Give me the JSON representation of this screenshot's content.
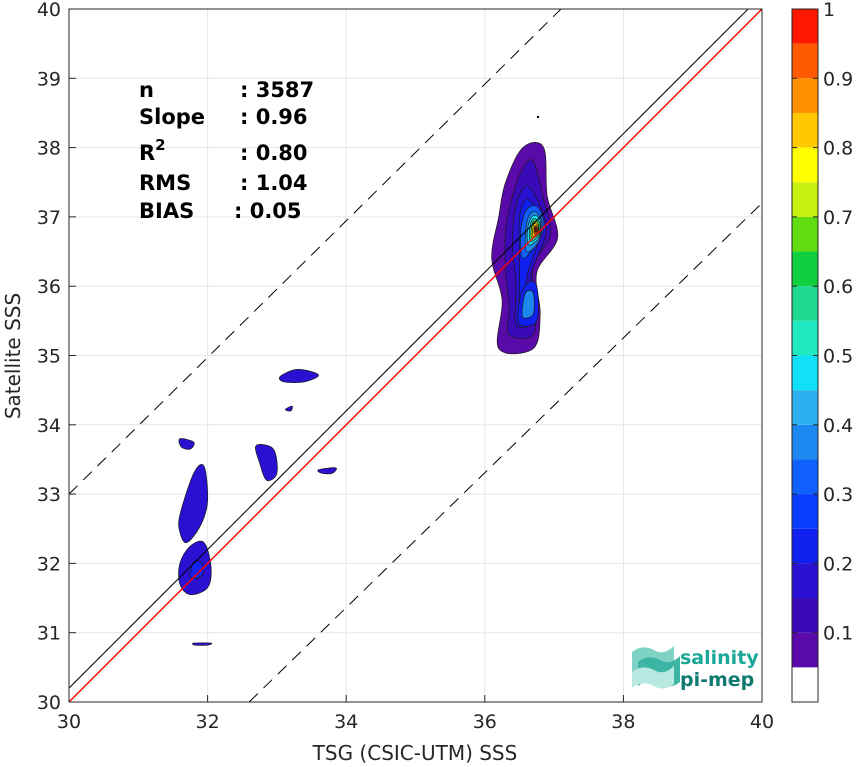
{
  "chart_data": {
    "type": "contour",
    "xlabel": "TSG (CSIC-UTM) SSS",
    "ylabel": "Satellite SSS",
    "xlim": [
      30,
      40
    ],
    "ylim": [
      30,
      40
    ],
    "xticks": [
      30,
      32,
      34,
      36,
      38,
      40
    ],
    "yticks": [
      30,
      31,
      32,
      33,
      34,
      35,
      36,
      37,
      38,
      39,
      40
    ],
    "grid": true,
    "lines": [
      {
        "kind": "identity",
        "color": "#000000",
        "style": "solid",
        "points": [
          [
            30,
            30.2
          ],
          [
            40,
            40.2
          ]
        ]
      },
      {
        "kind": "regression",
        "color": "#ff0000",
        "style": "solid",
        "points": [
          [
            30,
            30.0
          ],
          [
            40,
            40.0
          ]
        ]
      },
      {
        "kind": "upper-bound",
        "color": "#000000",
        "style": "dashed",
        "points": [
          [
            30,
            33.0
          ],
          [
            37.1,
            40.0
          ]
        ]
      },
      {
        "kind": "lower-bound",
        "color": "#000000",
        "style": "dashed",
        "points": [
          [
            32.6,
            30.0
          ],
          [
            40,
            37.2
          ]
        ]
      }
    ],
    "stats": [
      {
        "label": "n",
        "value": ": 3587"
      },
      {
        "label": "Slope",
        "value": ": 0.96"
      },
      {
        "label": "R",
        "sup": "2",
        "value": ": 0.80"
      },
      {
        "label": "RMS",
        "value": ": 1.04"
      },
      {
        "label": "BIAS",
        "value": ": 0.05"
      }
    ],
    "colorbar": {
      "ticks": [
        "0.1",
        "0.2",
        "0.3",
        "0.4",
        "0.5",
        "0.6",
        "0.7",
        "0.8",
        "0.9",
        "1"
      ],
      "tick_values": [
        0.1,
        0.2,
        0.3,
        0.4,
        0.5,
        0.6,
        0.7,
        0.8,
        0.9,
        1.0
      ],
      "range": [
        0,
        1
      ],
      "levels": [
        0,
        0.05,
        0.1,
        0.15,
        0.2,
        0.25,
        0.3,
        0.35,
        0.4,
        0.45,
        0.5,
        0.55,
        0.6,
        0.65,
        0.7,
        0.75,
        0.8,
        0.85,
        0.9,
        0.95,
        1.0
      ],
      "colors": [
        "#ffffff",
        "#5a0aa8",
        "#3a0ab8",
        "#2a10d0",
        "#1020ee",
        "#0a3cff",
        "#1060ff",
        "#1c88f0",
        "#2cb0f0",
        "#10e0f8",
        "#20e8c0",
        "#20d890",
        "#10d040",
        "#60dc10",
        "#c8f010",
        "#ffff00",
        "#ffc800",
        "#ff9000",
        "#ff5a00",
        "#ff1800",
        "#8c0000"
      ]
    },
    "contours": [
      {
        "name": "main-cluster-outer",
        "level": 0.05,
        "color": "#5a0aa8",
        "points": [
          [
            36.2,
            35.1
          ],
          [
            36.7,
            35.1
          ],
          [
            36.8,
            35.6
          ],
          [
            36.75,
            36.2
          ],
          [
            37.05,
            36.7
          ],
          [
            36.9,
            37.3
          ],
          [
            36.85,
            38.0
          ],
          [
            36.55,
            38.0
          ],
          [
            36.3,
            37.5
          ],
          [
            36.2,
            37.0
          ],
          [
            36.1,
            36.4
          ],
          [
            36.25,
            35.8
          ]
        ]
      },
      {
        "name": "main-cluster-l1",
        "level": 0.1,
        "color": "#3a0ab8",
        "points": [
          [
            36.35,
            35.3
          ],
          [
            36.7,
            35.3
          ],
          [
            36.72,
            35.8
          ],
          [
            36.7,
            36.3
          ],
          [
            36.95,
            36.75
          ],
          [
            36.85,
            37.25
          ],
          [
            36.7,
            37.8
          ],
          [
            36.55,
            37.7
          ],
          [
            36.4,
            37.3
          ],
          [
            36.3,
            36.8
          ],
          [
            36.3,
            36.2
          ],
          [
            36.35,
            35.7
          ]
        ]
      },
      {
        "name": "main-cluster-l2",
        "level": 0.15,
        "color": "#2a10d0",
        "points": [
          [
            36.45,
            35.45
          ],
          [
            36.68,
            35.5
          ],
          [
            36.65,
            36.1
          ],
          [
            36.88,
            36.75
          ],
          [
            36.8,
            37.15
          ],
          [
            36.6,
            37.45
          ],
          [
            36.45,
            37.15
          ],
          [
            36.4,
            36.6
          ],
          [
            36.45,
            36.0
          ]
        ]
      },
      {
        "name": "main-cluster-l3",
        "level": 0.2,
        "color": "#1020ee",
        "points": [
          [
            36.5,
            35.55
          ],
          [
            36.66,
            35.65
          ],
          [
            36.6,
            36.1
          ],
          [
            36.82,
            36.8
          ],
          [
            36.75,
            37.1
          ],
          [
            36.6,
            37.25
          ],
          [
            36.5,
            37.0
          ],
          [
            36.5,
            36.5
          ],
          [
            36.5,
            36.0
          ]
        ]
      },
      {
        "name": "main-cluster-l4",
        "level": 0.25,
        "color": "#1060ff",
        "points": [
          [
            36.55,
            36.4
          ],
          [
            36.8,
            36.7
          ],
          [
            36.85,
            36.95
          ],
          [
            36.75,
            37.15
          ],
          [
            36.6,
            37.1
          ],
          [
            36.52,
            36.8
          ]
        ]
      },
      {
        "name": "main-cluster-l5",
        "level": 0.3,
        "color": "#1c88f0",
        "points": [
          [
            36.6,
            36.5
          ],
          [
            36.78,
            36.65
          ],
          [
            36.82,
            36.95
          ],
          [
            36.7,
            37.08
          ],
          [
            36.6,
            36.9
          ]
        ]
      },
      {
        "name": "main-cluster-l6",
        "level": 0.4,
        "color": "#10e0f8",
        "points": [
          [
            36.63,
            36.6
          ],
          [
            36.78,
            36.7
          ],
          [
            36.8,
            36.95
          ],
          [
            36.7,
            37.02
          ],
          [
            36.62,
            36.85
          ]
        ]
      },
      {
        "name": "main-cluster-l7",
        "level": 0.5,
        "color": "#20d890",
        "points": [
          [
            36.66,
            36.65
          ],
          [
            36.78,
            36.74
          ],
          [
            36.79,
            36.92
          ],
          [
            36.7,
            36.97
          ],
          [
            36.65,
            36.85
          ]
        ]
      },
      {
        "name": "main-cluster-l8",
        "level": 0.6,
        "color": "#c8f010",
        "points": [
          [
            36.68,
            36.7
          ],
          [
            36.77,
            36.76
          ],
          [
            36.77,
            36.9
          ],
          [
            36.7,
            36.93
          ],
          [
            36.67,
            36.82
          ]
        ]
      },
      {
        "name": "main-cluster-l9",
        "level": 0.7,
        "color": "#ffc800",
        "points": [
          [
            36.7,
            36.72
          ],
          [
            36.77,
            36.78
          ],
          [
            36.76,
            36.88
          ],
          [
            36.71,
            36.9
          ],
          [
            36.69,
            36.8
          ]
        ]
      },
      {
        "name": "main-cluster-l10",
        "level": 0.8,
        "color": "#ff5a00",
        "points": [
          [
            36.72,
            36.75
          ],
          [
            36.76,
            36.79
          ],
          [
            36.75,
            36.86
          ],
          [
            36.72,
            36.87
          ],
          [
            36.71,
            36.8
          ]
        ]
      },
      {
        "name": "main-cluster-peak",
        "level": 0.95,
        "color": "#8c0000",
        "points": [
          [
            36.73,
            36.78
          ],
          [
            36.75,
            36.8
          ],
          [
            36.75,
            36.84
          ],
          [
            36.73,
            36.85
          ],
          [
            36.72,
            36.81
          ]
        ]
      },
      {
        "name": "main-lower-lobe",
        "level": 0.2,
        "color": "#1020ee",
        "points": [
          [
            36.5,
            35.45
          ],
          [
            36.75,
            35.5
          ],
          [
            36.75,
            36.0
          ],
          [
            36.62,
            36.05
          ],
          [
            36.5,
            35.8
          ]
        ]
      },
      {
        "name": "main-lower-lobe-l2",
        "level": 0.3,
        "color": "#1c88f0",
        "points": [
          [
            36.55,
            35.55
          ],
          [
            36.7,
            35.6
          ],
          [
            36.7,
            35.9
          ],
          [
            36.6,
            35.92
          ],
          [
            36.55,
            35.75
          ]
        ]
      },
      {
        "name": "blob-33.4-34.7",
        "level": 0.05,
        "color": "#2a10d0",
        "points": [
          [
            33.05,
            34.7
          ],
          [
            33.3,
            34.8
          ],
          [
            33.6,
            34.72
          ],
          [
            33.4,
            34.62
          ],
          [
            33.1,
            34.62
          ]
        ]
      },
      {
        "name": "blob-33.2-34.25",
        "level": 0.05,
        "color": "#2a10d0",
        "points": [
          [
            33.12,
            34.22
          ],
          [
            33.22,
            34.27
          ],
          [
            33.2,
            34.2
          ]
        ]
      },
      {
        "name": "blob-32.8-33.5",
        "level": 0.05,
        "color": "#2a10d0",
        "points": [
          [
            32.7,
            33.7
          ],
          [
            32.95,
            33.65
          ],
          [
            33.0,
            33.3
          ],
          [
            32.85,
            33.2
          ],
          [
            32.75,
            33.45
          ]
        ]
      },
      {
        "name": "blob-33.7-33.35",
        "level": 0.05,
        "color": "#2a10d0",
        "points": [
          [
            33.6,
            33.35
          ],
          [
            33.85,
            33.38
          ],
          [
            33.8,
            33.3
          ],
          [
            33.65,
            33.3
          ]
        ]
      },
      {
        "name": "blob-31.7-33.75",
        "level": 0.05,
        "color": "#2a10d0",
        "points": [
          [
            31.6,
            33.8
          ],
          [
            31.8,
            33.75
          ],
          [
            31.75,
            33.65
          ],
          [
            31.62,
            33.68
          ]
        ]
      },
      {
        "name": "blob-31.9-32.9",
        "level": 0.05,
        "color": "#2a10d0",
        "points": [
          [
            31.6,
            32.7
          ],
          [
            31.8,
            33.3
          ],
          [
            31.95,
            33.4
          ],
          [
            32.0,
            32.9
          ],
          [
            31.9,
            32.55
          ],
          [
            31.7,
            32.3
          ],
          [
            31.6,
            32.45
          ]
        ]
      },
      {
        "name": "blob-31.8-31.9",
        "level": 0.05,
        "color": "#2a10d0",
        "points": [
          [
            31.6,
            31.7
          ],
          [
            31.75,
            31.55
          ],
          [
            32.0,
            31.65
          ],
          [
            32.05,
            31.95
          ],
          [
            31.95,
            32.3
          ],
          [
            31.75,
            32.25
          ],
          [
            31.6,
            32.0
          ]
        ]
      },
      {
        "name": "blob-31.8-31.9-l2",
        "level": 0.15,
        "color": "#1020ee",
        "points": [
          [
            31.75,
            31.8
          ],
          [
            31.92,
            31.82
          ],
          [
            31.92,
            32.0
          ],
          [
            31.8,
            32.02
          ]
        ]
      },
      {
        "name": "blob-31.9-30.85",
        "level": 0.05,
        "color": "#2a10d0",
        "points": [
          [
            31.8,
            30.85
          ],
          [
            32.05,
            30.85
          ],
          [
            32.0,
            30.82
          ],
          [
            31.82,
            30.82
          ]
        ]
      }
    ]
  },
  "logo": {
    "line1": "salinity",
    "line2": "pi-mep"
  }
}
